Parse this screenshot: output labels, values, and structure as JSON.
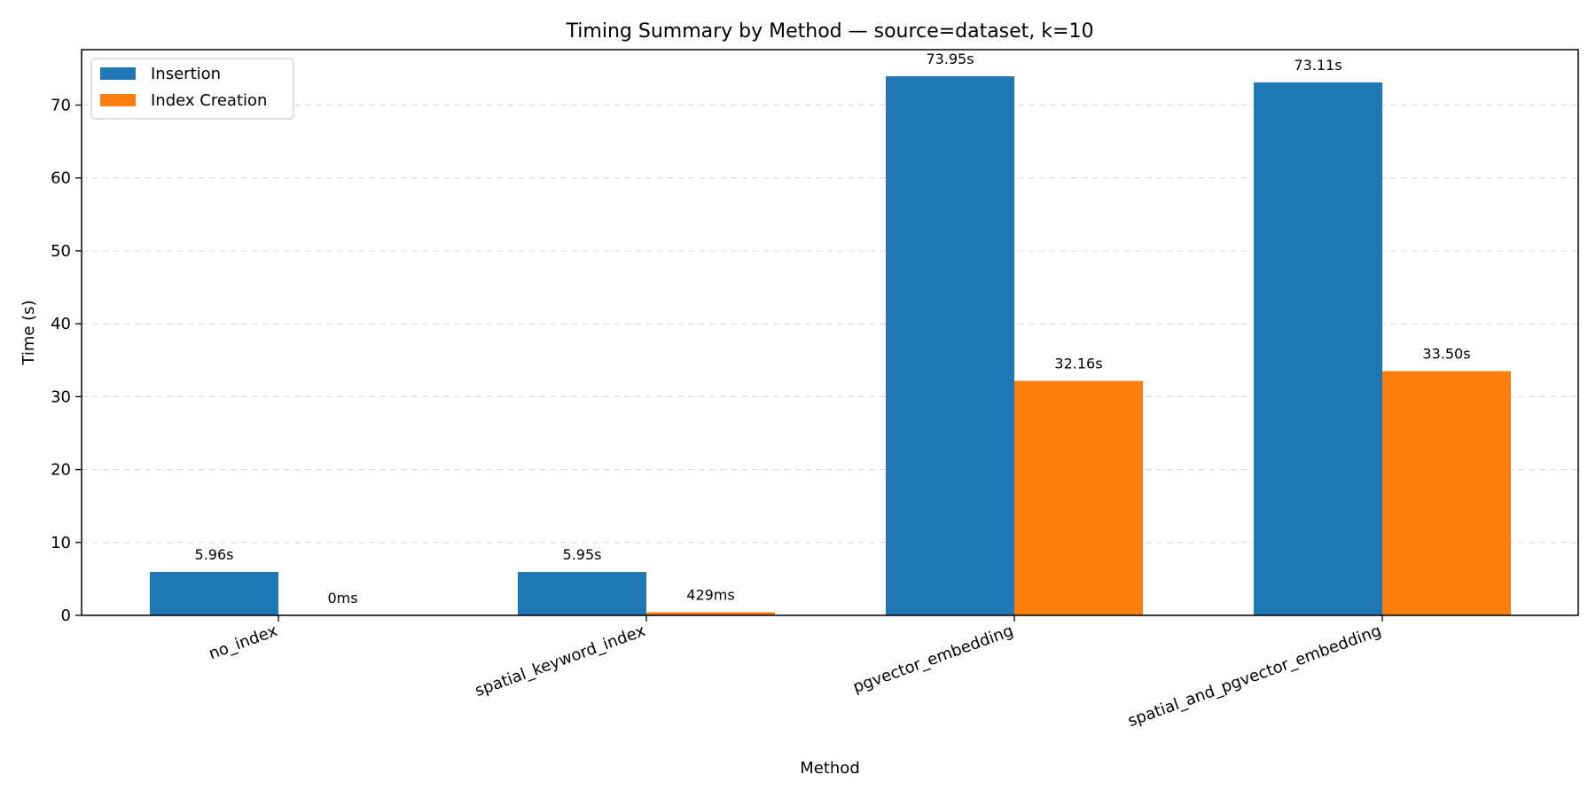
{
  "chart_data": {
    "type": "bar",
    "title": "Timing Summary by Method — source=dataset, k=10",
    "xlabel": "Method",
    "ylabel": "Time (s)",
    "ylim": [
      0,
      77.6
    ],
    "yticks": [
      0,
      10,
      20,
      30,
      40,
      50,
      60,
      70
    ],
    "grid": "y-dashed",
    "legend_position": "top-left",
    "categories": [
      "no_index",
      "spatial_keyword_index",
      "pgvector_embedding",
      "spatial_and_pgvector_embedding"
    ],
    "series": [
      {
        "name": "Insertion",
        "color": "#1f77b4",
        "values": [
          5.96,
          5.95,
          73.95,
          73.11
        ],
        "labels": [
          "5.96s",
          "5.95s",
          "73.95s",
          "73.11s"
        ]
      },
      {
        "name": "Index Creation",
        "color": "#ff7f0e",
        "values": [
          0.0,
          0.429,
          32.16,
          33.5
        ],
        "labels": [
          "0ms",
          "429ms",
          "32.16s",
          "33.50s"
        ]
      }
    ]
  }
}
